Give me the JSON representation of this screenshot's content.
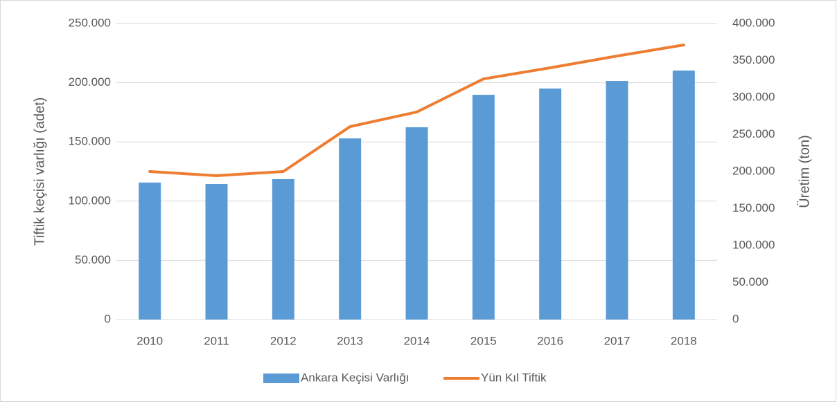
{
  "chart_data": {
    "type": "bar-line",
    "categories": [
      "2010",
      "2011",
      "2012",
      "2013",
      "2014",
      "2015",
      "2016",
      "2017",
      "2018"
    ],
    "series": [
      {
        "name": "Ankara Keçisi Varlığı",
        "type": "bar",
        "color": "#5b9bd5",
        "values": [
          115700,
          114500,
          118600,
          153000,
          162400,
          189800,
          195100,
          201500,
          210300
        ]
      },
      {
        "name": "Yün Kıl Tiftik",
        "type": "line",
        "axis": "y2",
        "color": "#ed7d31",
        "values": [
          200000,
          194400,
          200000,
          260700,
          280400,
          325200,
          340200,
          356100,
          371000
        ]
      }
    ],
    "ylabel": "Tiftik keçisi varlığı (adet)",
    "y2label": "Üretim (ton)",
    "ylim": [
      0,
      250000
    ],
    "yticks": [
      0,
      {
        "value": 50000,
        "label": "50.000"
      },
      {
        "value": 100000,
        "label": "100.000"
      },
      {
        "value": 150000,
        "label": "150.000"
      },
      {
        "value": 200000,
        "label": "200.000"
      },
      {
        "value": 250000,
        "label": "250.000"
      }
    ],
    "y2lim": [
      0,
      400000
    ],
    "y2ticks": [
      0,
      {
        "value": 50000,
        "label": "50.000"
      },
      {
        "value": 100000,
        "label": "100.000"
      },
      {
        "value": 150000,
        "label": "150.000"
      },
      {
        "value": 200000,
        "label": "200.000"
      },
      {
        "value": 250000,
        "label": "250.000"
      },
      {
        "value": 300000,
        "label": "300.000"
      },
      {
        "value": 350000,
        "label": "350.000"
      },
      {
        "value": 400000,
        "label": "400.000"
      }
    ],
    "grid": true,
    "legend": "bottom"
  }
}
